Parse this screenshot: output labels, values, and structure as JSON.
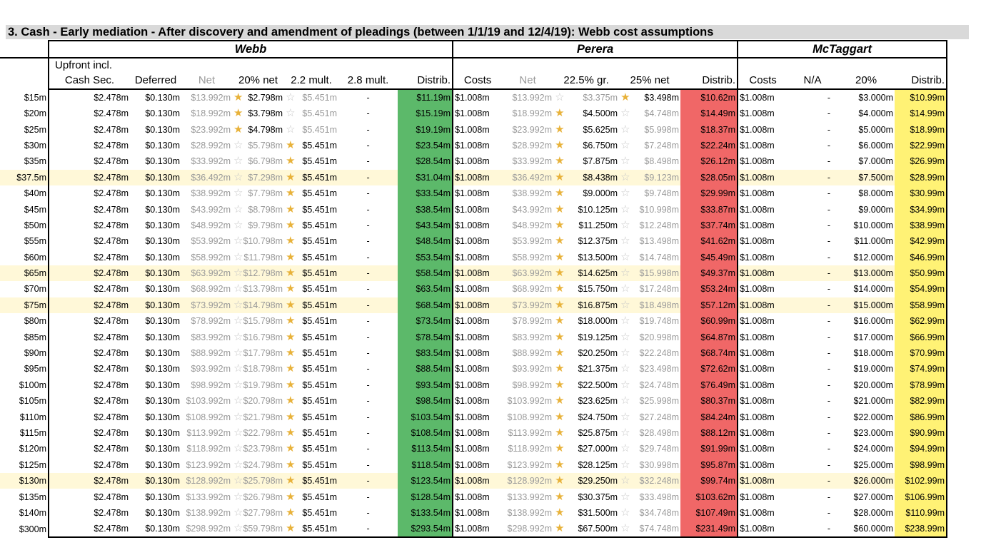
{
  "title": "3.  Cash - Early mediation - After discovery and amendment of pleadings (between 1/1/19 and 12/4/19): Webb cost assumptions",
  "groups": {
    "webb": "Webb",
    "perera": "Perera",
    "mctaggart": "McTaggart"
  },
  "headers": {
    "upfront_line1": "Upfront incl.",
    "upfront_line2": "Cash Sec.",
    "deferred": "Deferred",
    "net": "Net",
    "webb_20net": "20% net",
    "webb_22mult": "2.2 mult.",
    "webb_28mult": "2.8 mult.",
    "distrib": "Distrib.",
    "costs": "Costs",
    "perera_net": "Net",
    "perera_225gr": "22.5% gr.",
    "perera_25net": "25% net",
    "perera_distrib": "Distrib.",
    "mct_costs": "Costs",
    "mct_na": "N/A",
    "mct_20": "20%",
    "mct_distrib": "Distrib."
  },
  "colors": {
    "green": "#5cb96a",
    "red": "#f06767",
    "yellow": "#fff275",
    "highlight": "#fff8d8",
    "star_on": "#e8b23a",
    "star_off": "#c8c8c8"
  },
  "rows": [
    {
      "label": "$15m",
      "upfront": "$2.478m",
      "deferred": "$0.130m",
      "net": "$13.992m",
      "w20": "$2.798m",
      "w22": "$5.451m",
      "w28": "-",
      "wd": "$11.19m",
      "pc": "$1.008m",
      "pn": "$13.992m",
      "p225": "$3.375m",
      "p25": "$3.498m",
      "pd": "$10.62m",
      "mc": "$1.008m",
      "mna": "-",
      "m20": "$3.000m",
      "md": "$10.99m",
      "ws": "20",
      "ps": "25",
      "hl": false
    },
    {
      "label": "$20m",
      "upfront": "$2.478m",
      "deferred": "$0.130m",
      "net": "$18.992m",
      "w20": "$3.798m",
      "w22": "$5.451m",
      "w28": "-",
      "wd": "$15.19m",
      "pc": "$1.008m",
      "pn": "$18.992m",
      "p225": "$4.500m",
      "p25": "$4.748m",
      "pd": "$14.49m",
      "mc": "$1.008m",
      "mna": "-",
      "m20": "$4.000m",
      "md": "$14.99m",
      "ws": "20",
      "ps": "225",
      "hl": false
    },
    {
      "label": "$25m",
      "upfront": "$2.478m",
      "deferred": "$0.130m",
      "net": "$23.992m",
      "w20": "$4.798m",
      "w22": "$5.451m",
      "w28": "-",
      "wd": "$19.19m",
      "pc": "$1.008m",
      "pn": "$23.992m",
      "p225": "$5.625m",
      "p25": "$5.998m",
      "pd": "$18.37m",
      "mc": "$1.008m",
      "mna": "-",
      "m20": "$5.000m",
      "md": "$18.99m",
      "ws": "20",
      "ps": "225",
      "hl": false
    },
    {
      "label": "$30m",
      "upfront": "$2.478m",
      "deferred": "$0.130m",
      "net": "$28.992m",
      "w20": "$5.798m",
      "w22": "$5.451m",
      "w28": "-",
      "wd": "$23.54m",
      "pc": "$1.008m",
      "pn": "$28.992m",
      "p225": "$6.750m",
      "p25": "$7.248m",
      "pd": "$22.24m",
      "mc": "$1.008m",
      "mna": "-",
      "m20": "$6.000m",
      "md": "$22.99m",
      "ws": "22",
      "ps": "225",
      "hl": false
    },
    {
      "label": "$35m",
      "upfront": "$2.478m",
      "deferred": "$0.130m",
      "net": "$33.992m",
      "w20": "$6.798m",
      "w22": "$5.451m",
      "w28": "-",
      "wd": "$28.54m",
      "pc": "$1.008m",
      "pn": "$33.992m",
      "p225": "$7.875m",
      "p25": "$8.498m",
      "pd": "$26.12m",
      "mc": "$1.008m",
      "mna": "-",
      "m20": "$7.000m",
      "md": "$26.99m",
      "ws": "22",
      "ps": "225",
      "hl": false
    },
    {
      "label": "$37.5m",
      "upfront": "$2.478m",
      "deferred": "$0.130m",
      "net": "$36.492m",
      "w20": "$7.298m",
      "w22": "$5.451m",
      "w28": "-",
      "wd": "$31.04m",
      "pc": "$1.008m",
      "pn": "$36.492m",
      "p225": "$8.438m",
      "p25": "$9.123m",
      "pd": "$28.05m",
      "mc": "$1.008m",
      "mna": "-",
      "m20": "$7.500m",
      "md": "$28.99m",
      "ws": "22",
      "ps": "225",
      "hl": true
    },
    {
      "label": "$40m",
      "upfront": "$2.478m",
      "deferred": "$0.130m",
      "net": "$38.992m",
      "w20": "$7.798m",
      "w22": "$5.451m",
      "w28": "-",
      "wd": "$33.54m",
      "pc": "$1.008m",
      "pn": "$38.992m",
      "p225": "$9.000m",
      "p25": "$9.748m",
      "pd": "$29.99m",
      "mc": "$1.008m",
      "mna": "-",
      "m20": "$8.000m",
      "md": "$30.99m",
      "ws": "22",
      "ps": "225",
      "hl": false
    },
    {
      "label": "$45m",
      "upfront": "$2.478m",
      "deferred": "$0.130m",
      "net": "$43.992m",
      "w20": "$8.798m",
      "w22": "$5.451m",
      "w28": "-",
      "wd": "$38.54m",
      "pc": "$1.008m",
      "pn": "$43.992m",
      "p225": "$10.125m",
      "p25": "$10.998m",
      "pd": "$33.87m",
      "mc": "$1.008m",
      "mna": "-",
      "m20": "$9.000m",
      "md": "$34.99m",
      "ws": "22",
      "ps": "225",
      "hl": false
    },
    {
      "label": "$50m",
      "upfront": "$2.478m",
      "deferred": "$0.130m",
      "net": "$48.992m",
      "w20": "$9.798m",
      "w22": "$5.451m",
      "w28": "-",
      "wd": "$43.54m",
      "pc": "$1.008m",
      "pn": "$48.992m",
      "p225": "$11.250m",
      "p25": "$12.248m",
      "pd": "$37.74m",
      "mc": "$1.008m",
      "mna": "-",
      "m20": "$10.000m",
      "md": "$38.99m",
      "ws": "22",
      "ps": "225",
      "hl": false
    },
    {
      "label": "$55m",
      "upfront": "$2.478m",
      "deferred": "$0.130m",
      "net": "$53.992m",
      "w20": "$10.798m",
      "w22": "$5.451m",
      "w28": "-",
      "wd": "$48.54m",
      "pc": "$1.008m",
      "pn": "$53.992m",
      "p225": "$12.375m",
      "p25": "$13.498m",
      "pd": "$41.62m",
      "mc": "$1.008m",
      "mna": "-",
      "m20": "$11.000m",
      "md": "$42.99m",
      "ws": "22",
      "ps": "225",
      "hl": false
    },
    {
      "label": "$60m",
      "upfront": "$2.478m",
      "deferred": "$0.130m",
      "net": "$58.992m",
      "w20": "$11.798m",
      "w22": "$5.451m",
      "w28": "-",
      "wd": "$53.54m",
      "pc": "$1.008m",
      "pn": "$58.992m",
      "p225": "$13.500m",
      "p25": "$14.748m",
      "pd": "$45.49m",
      "mc": "$1.008m",
      "mna": "-",
      "m20": "$12.000m",
      "md": "$46.99m",
      "ws": "22",
      "ps": "225",
      "hl": false
    },
    {
      "label": "$65m",
      "upfront": "$2.478m",
      "deferred": "$0.130m",
      "net": "$63.992m",
      "w20": "$12.798m",
      "w22": "$5.451m",
      "w28": "-",
      "wd": "$58.54m",
      "pc": "$1.008m",
      "pn": "$63.992m",
      "p225": "$14.625m",
      "p25": "$15.998m",
      "pd": "$49.37m",
      "mc": "$1.008m",
      "mna": "-",
      "m20": "$13.000m",
      "md": "$50.99m",
      "ws": "22",
      "ps": "225",
      "hl": true
    },
    {
      "label": "$70m",
      "upfront": "$2.478m",
      "deferred": "$0.130m",
      "net": "$68.992m",
      "w20": "$13.798m",
      "w22": "$5.451m",
      "w28": "-",
      "wd": "$63.54m",
      "pc": "$1.008m",
      "pn": "$68.992m",
      "p225": "$15.750m",
      "p25": "$17.248m",
      "pd": "$53.24m",
      "mc": "$1.008m",
      "mna": "-",
      "m20": "$14.000m",
      "md": "$54.99m",
      "ws": "22",
      "ps": "225",
      "hl": false
    },
    {
      "label": "$75m",
      "upfront": "$2.478m",
      "deferred": "$0.130m",
      "net": "$73.992m",
      "w20": "$14.798m",
      "w22": "$5.451m",
      "w28": "-",
      "wd": "$68.54m",
      "pc": "$1.008m",
      "pn": "$73.992m",
      "p225": "$16.875m",
      "p25": "$18.498m",
      "pd": "$57.12m",
      "mc": "$1.008m",
      "mna": "-",
      "m20": "$15.000m",
      "md": "$58.99m",
      "ws": "22",
      "ps": "225",
      "hl": true
    },
    {
      "label": "$80m",
      "upfront": "$2.478m",
      "deferred": "$0.130m",
      "net": "$78.992m",
      "w20": "$15.798m",
      "w22": "$5.451m",
      "w28": "-",
      "wd": "$73.54m",
      "pc": "$1.008m",
      "pn": "$78.992m",
      "p225": "$18.000m",
      "p25": "$19.748m",
      "pd": "$60.99m",
      "mc": "$1.008m",
      "mna": "-",
      "m20": "$16.000m",
      "md": "$62.99m",
      "ws": "22",
      "ps": "225",
      "hl": false
    },
    {
      "label": "$85m",
      "upfront": "$2.478m",
      "deferred": "$0.130m",
      "net": "$83.992m",
      "w20": "$16.798m",
      "w22": "$5.451m",
      "w28": "-",
      "wd": "$78.54m",
      "pc": "$1.008m",
      "pn": "$83.992m",
      "p225": "$19.125m",
      "p25": "$20.998m",
      "pd": "$64.87m",
      "mc": "$1.008m",
      "mna": "-",
      "m20": "$17.000m",
      "md": "$66.99m",
      "ws": "22",
      "ps": "225",
      "hl": false
    },
    {
      "label": "$90m",
      "upfront": "$2.478m",
      "deferred": "$0.130m",
      "net": "$88.992m",
      "w20": "$17.798m",
      "w22": "$5.451m",
      "w28": "-",
      "wd": "$83.54m",
      "pc": "$1.008m",
      "pn": "$88.992m",
      "p225": "$20.250m",
      "p25": "$22.248m",
      "pd": "$68.74m",
      "mc": "$1.008m",
      "mna": "-",
      "m20": "$18.000m",
      "md": "$70.99m",
      "ws": "22",
      "ps": "225",
      "hl": false
    },
    {
      "label": "$95m",
      "upfront": "$2.478m",
      "deferred": "$0.130m",
      "net": "$93.992m",
      "w20": "$18.798m",
      "w22": "$5.451m",
      "w28": "-",
      "wd": "$88.54m",
      "pc": "$1.008m",
      "pn": "$93.992m",
      "p225": "$21.375m",
      "p25": "$23.498m",
      "pd": "$72.62m",
      "mc": "$1.008m",
      "mna": "-",
      "m20": "$19.000m",
      "md": "$74.99m",
      "ws": "22",
      "ps": "225",
      "hl": false
    },
    {
      "label": "$100m",
      "upfront": "$2.478m",
      "deferred": "$0.130m",
      "net": "$98.992m",
      "w20": "$19.798m",
      "w22": "$5.451m",
      "w28": "-",
      "wd": "$93.54m",
      "pc": "$1.008m",
      "pn": "$98.992m",
      "p225": "$22.500m",
      "p25": "$24.748m",
      "pd": "$76.49m",
      "mc": "$1.008m",
      "mna": "-",
      "m20": "$20.000m",
      "md": "$78.99m",
      "ws": "22",
      "ps": "225",
      "hl": false
    },
    {
      "label": "$105m",
      "upfront": "$2.478m",
      "deferred": "$0.130m",
      "net": "$103.992m",
      "w20": "$20.798m",
      "w22": "$5.451m",
      "w28": "-",
      "wd": "$98.54m",
      "pc": "$1.008m",
      "pn": "$103.992m",
      "p225": "$23.625m",
      "p25": "$25.998m",
      "pd": "$80.37m",
      "mc": "$1.008m",
      "mna": "-",
      "m20": "$21.000m",
      "md": "$82.99m",
      "ws": "22",
      "ps": "225",
      "hl": false
    },
    {
      "label": "$110m",
      "upfront": "$2.478m",
      "deferred": "$0.130m",
      "net": "$108.992m",
      "w20": "$21.798m",
      "w22": "$5.451m",
      "w28": "-",
      "wd": "$103.54m",
      "pc": "$1.008m",
      "pn": "$108.992m",
      "p225": "$24.750m",
      "p25": "$27.248m",
      "pd": "$84.24m",
      "mc": "$1.008m",
      "mna": "-",
      "m20": "$22.000m",
      "md": "$86.99m",
      "ws": "22",
      "ps": "225",
      "hl": false
    },
    {
      "label": "$115m",
      "upfront": "$2.478m",
      "deferred": "$0.130m",
      "net": "$113.992m",
      "w20": "$22.798m",
      "w22": "$5.451m",
      "w28": "-",
      "wd": "$108.54m",
      "pc": "$1.008m",
      "pn": "$113.992m",
      "p225": "$25.875m",
      "p25": "$28.498m",
      "pd": "$88.12m",
      "mc": "$1.008m",
      "mna": "-",
      "m20": "$23.000m",
      "md": "$90.99m",
      "ws": "22",
      "ps": "225",
      "hl": false
    },
    {
      "label": "$120m",
      "upfront": "$2.478m",
      "deferred": "$0.130m",
      "net": "$118.992m",
      "w20": "$23.798m",
      "w22": "$5.451m",
      "w28": "-",
      "wd": "$113.54m",
      "pc": "$1.008m",
      "pn": "$118.992m",
      "p225": "$27.000m",
      "p25": "$29.748m",
      "pd": "$91.99m",
      "mc": "$1.008m",
      "mna": "-",
      "m20": "$24.000m",
      "md": "$94.99m",
      "ws": "22",
      "ps": "225",
      "hl": false
    },
    {
      "label": "$125m",
      "upfront": "$2.478m",
      "deferred": "$0.130m",
      "net": "$123.992m",
      "w20": "$24.798m",
      "w22": "$5.451m",
      "w28": "-",
      "wd": "$118.54m",
      "pc": "$1.008m",
      "pn": "$123.992m",
      "p225": "$28.125m",
      "p25": "$30.998m",
      "pd": "$95.87m",
      "mc": "$1.008m",
      "mna": "-",
      "m20": "$25.000m",
      "md": "$98.99m",
      "ws": "22",
      "ps": "225",
      "hl": false
    },
    {
      "label": "$130m",
      "upfront": "$2.478m",
      "deferred": "$0.130m",
      "net": "$128.992m",
      "w20": "$25.798m",
      "w22": "$5.451m",
      "w28": "-",
      "wd": "$123.54m",
      "pc": "$1.008m",
      "pn": "$128.992m",
      "p225": "$29.250m",
      "p25": "$32.248m",
      "pd": "$99.74m",
      "mc": "$1.008m",
      "mna": "-",
      "m20": "$26.000m",
      "md": "$102.99m",
      "ws": "22",
      "ps": "225",
      "hl": true
    },
    {
      "label": "$135m",
      "upfront": "$2.478m",
      "deferred": "$0.130m",
      "net": "$133.992m",
      "w20": "$26.798m",
      "w22": "$5.451m",
      "w28": "-",
      "wd": "$128.54m",
      "pc": "$1.008m",
      "pn": "$133.992m",
      "p225": "$30.375m",
      "p25": "$33.498m",
      "pd": "$103.62m",
      "mc": "$1.008m",
      "mna": "-",
      "m20": "$27.000m",
      "md": "$106.99m",
      "ws": "22",
      "ps": "225",
      "hl": false
    },
    {
      "label": "$140m",
      "upfront": "$2.478m",
      "deferred": "$0.130m",
      "net": "$138.992m",
      "w20": "$27.798m",
      "w22": "$5.451m",
      "w28": "-",
      "wd": "$133.54m",
      "pc": "$1.008m",
      "pn": "$138.992m",
      "p225": "$31.500m",
      "p25": "$34.748m",
      "pd": "$107.49m",
      "mc": "$1.008m",
      "mna": "-",
      "m20": "$28.000m",
      "md": "$110.99m",
      "ws": "22",
      "ps": "225",
      "hl": false
    },
    {
      "label": "$300m",
      "upfront": "$2.478m",
      "deferred": "$0.130m",
      "net": "$298.992m",
      "w20": "$59.798m",
      "w22": "$5.451m",
      "w28": "-",
      "wd": "$293.54m",
      "pc": "$1.008m",
      "pn": "$298.992m",
      "p225": "$67.500m",
      "p25": "$74.748m",
      "pd": "$231.49m",
      "mc": "$1.008m",
      "mna": "-",
      "m20": "$60.000m",
      "md": "$238.99m",
      "ws": "22",
      "ps": "225",
      "hl": false
    }
  ]
}
